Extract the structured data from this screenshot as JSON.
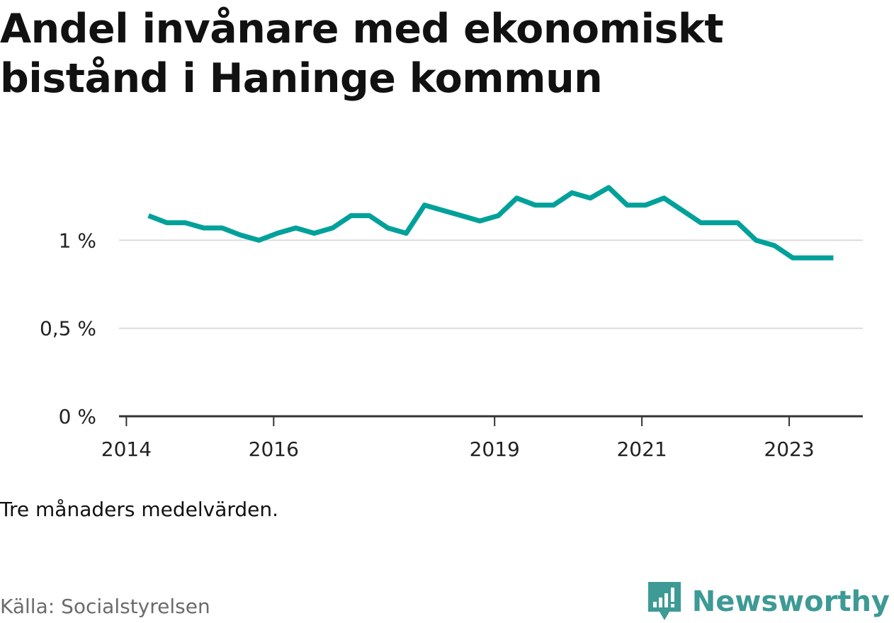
{
  "title": "Andel invånare med ekonomiskt bistånd i Haninge kommun",
  "note": "Tre månaders medelvärden.",
  "source": "Källa: Socialstyrelsen",
  "brand": {
    "name": "Newsworthy",
    "color": "#3d9a95"
  },
  "chart_data": {
    "type": "line",
    "line_color": "#00a19a",
    "grid": true,
    "ylim": [
      0,
      1.4
    ],
    "yticks": [
      0,
      0.5,
      1
    ],
    "ytick_labels": [
      "0 %",
      "0,5 %",
      "1 %"
    ],
    "xlim": [
      2013.9,
      2024
    ],
    "xticks": [
      2014,
      2016,
      2019,
      2021,
      2023
    ],
    "xtick_labels": [
      "2014",
      "2016",
      "2019",
      "2021",
      "2023"
    ],
    "series": [
      {
        "x": [
          2014.3,
          2014.55,
          2014.8,
          2015.05,
          2015.3,
          2015.55,
          2015.8,
          2016.05,
          2016.3,
          2016.55,
          2016.8,
          2017.05,
          2017.3,
          2017.55,
          2017.8,
          2018.05,
          2018.3,
          2018.55,
          2018.8,
          2019.05,
          2019.3,
          2019.55,
          2019.8,
          2020.05,
          2020.3,
          2020.55,
          2020.8,
          2021.05,
          2021.3,
          2021.55,
          2021.8,
          2022.05,
          2022.3,
          2022.55,
          2022.8,
          2023.05,
          2023.3,
          2023.6
        ],
        "values": [
          1.14,
          1.1,
          1.1,
          1.07,
          1.07,
          1.03,
          1.0,
          1.04,
          1.07,
          1.04,
          1.07,
          1.14,
          1.14,
          1.07,
          1.04,
          1.2,
          1.17,
          1.14,
          1.11,
          1.14,
          1.24,
          1.2,
          1.2,
          1.27,
          1.24,
          1.3,
          1.2,
          1.2,
          1.24,
          1.17,
          1.1,
          1.1,
          1.1,
          1.0,
          0.97,
          0.9,
          0.9,
          0.9
        ]
      }
    ]
  }
}
